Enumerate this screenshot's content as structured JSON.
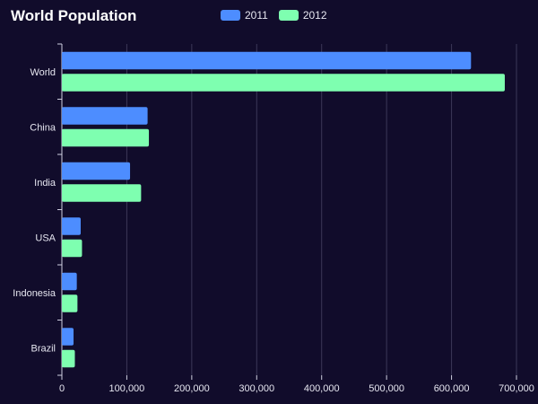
{
  "chart_data": {
    "type": "bar",
    "orientation": "horizontal",
    "title": "World Population",
    "categories": [
      "World",
      "China",
      "India",
      "USA",
      "Indonesia",
      "Brazil"
    ],
    "series": [
      {
        "name": "2011",
        "color": "#4d8dff",
        "values": [
          630000,
          132000,
          105000,
          29000,
          23000,
          18000
        ]
      },
      {
        "name": "2012",
        "color": "#7effb0",
        "values": [
          682000,
          134000,
          122000,
          31000,
          24000,
          20000
        ]
      }
    ],
    "x_ticks": [
      "0",
      "100,000",
      "200,000",
      "300,000",
      "400,000",
      "500,000",
      "600,000",
      "700,000"
    ],
    "xlim": [
      0,
      700000
    ],
    "grid": true,
    "legend_position": "top-center"
  }
}
